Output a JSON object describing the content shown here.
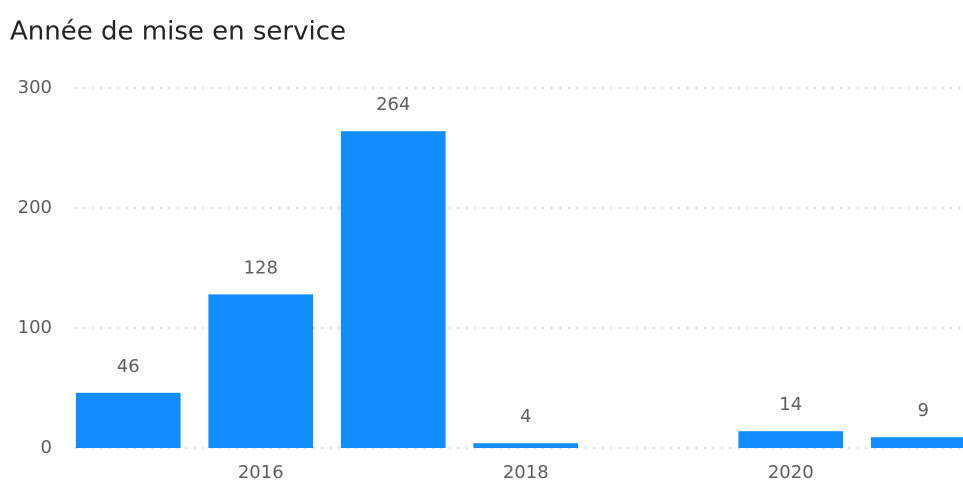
{
  "chart_data": {
    "type": "bar",
    "title": "Année de mise en service",
    "x": [
      2015,
      2016,
      2017,
      2018,
      2020,
      2021
    ],
    "values": [
      46,
      128,
      264,
      4,
      14,
      9
    ],
    "color": "#118dff",
    "xlim": [
      2014.5,
      2021.3
    ],
    "xticks": [
      2016,
      2018,
      2020
    ],
    "ylim": [
      0,
      300
    ],
    "yticks": [
      0,
      100,
      200,
      300
    ],
    "grid": true
  }
}
